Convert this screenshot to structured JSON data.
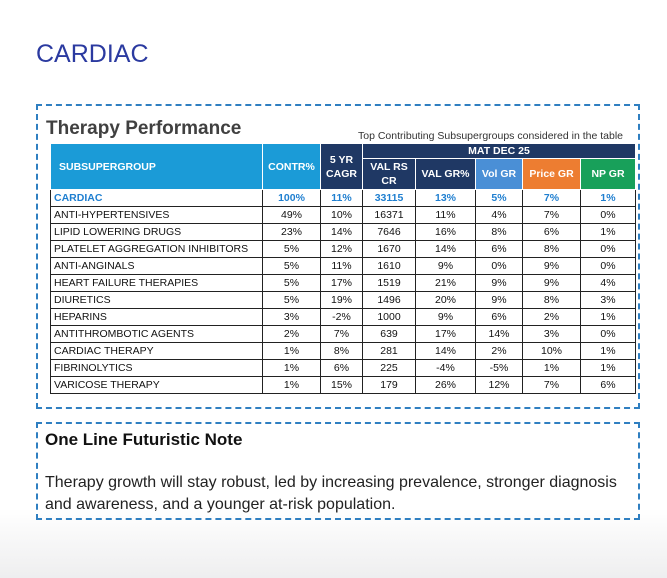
{
  "header": {
    "title": "CARDIAC"
  },
  "panel": {
    "title": "Therapy Performance",
    "caption": "Top Contributing Subsupergroups considered in the table"
  },
  "table": {
    "group_header": "MAT DEC 25",
    "columns": [
      "SUBSUPERGROUP",
      "CONTR%",
      "5 YR CAGR",
      "VAL RS CR",
      "VAL GR%",
      "Vol GR",
      "Price GR",
      "NP GR"
    ],
    "rows": [
      [
        "CARDIAC",
        "100%",
        "11%",
        "33115",
        "13%",
        "5%",
        "7%",
        "1%"
      ],
      [
        "ANTI-HYPERTENSIVES",
        "49%",
        "10%",
        "16371",
        "11%",
        "4%",
        "7%",
        "0%"
      ],
      [
        "LIPID LOWERING DRUGS",
        "23%",
        "14%",
        "7646",
        "16%",
        "8%",
        "6%",
        "1%"
      ],
      [
        "PLATELET AGGREGATION INHIBITORS",
        "5%",
        "12%",
        "1670",
        "14%",
        "6%",
        "8%",
        "0%"
      ],
      [
        "ANTI-ANGINALS",
        "5%",
        "11%",
        "1610",
        "9%",
        "0%",
        "9%",
        "0%"
      ],
      [
        "HEART FAILURE THERAPIES",
        "5%",
        "17%",
        "1519",
        "21%",
        "9%",
        "9%",
        "4%"
      ],
      [
        "DIURETICS",
        "5%",
        "19%",
        "1496",
        "20%",
        "9%",
        "8%",
        "3%"
      ],
      [
        "HEPARINS",
        "3%",
        "-2%",
        "1000",
        "9%",
        "6%",
        "2%",
        "1%"
      ],
      [
        "ANTITHROMBOTIC AGENTS",
        "2%",
        "7%",
        "639",
        "17%",
        "14%",
        "3%",
        "0%"
      ],
      [
        "CARDIAC THERAPY",
        "1%",
        "8%",
        "281",
        "14%",
        "2%",
        "10%",
        "1%"
      ],
      [
        "FIBRINOLYTICS",
        "1%",
        "6%",
        "225",
        "-4%",
        "-5%",
        "1%",
        "1%"
      ],
      [
        "VARICOSE THERAPY",
        "1%",
        "15%",
        "179",
        "26%",
        "12%",
        "7%",
        "6%"
      ]
    ]
  },
  "note": {
    "title": "One Line Futuristic Note",
    "text": "Therapy growth will stay robust, led by increasing prevalence, stronger diagnosis and awareness, and a younger at-risk population."
  }
}
